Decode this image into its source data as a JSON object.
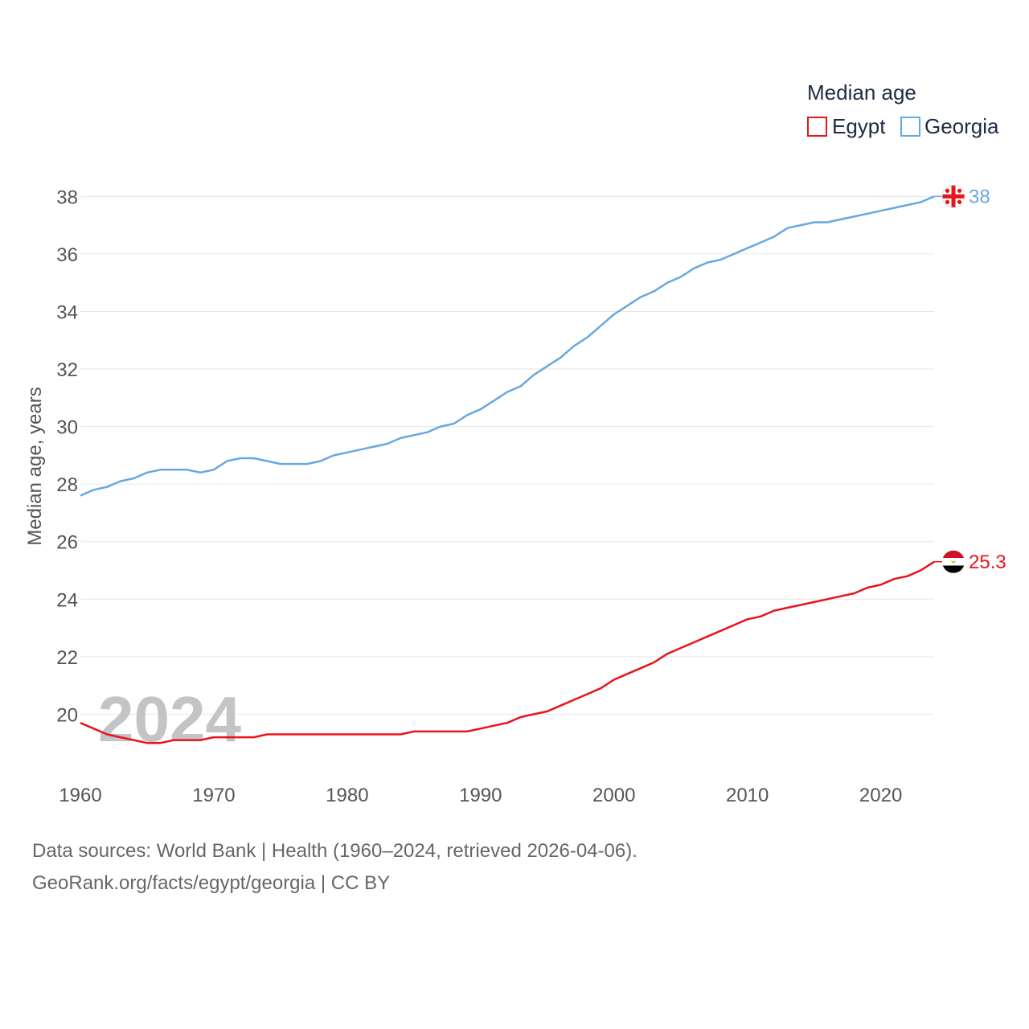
{
  "legend": {
    "title": "Median age",
    "items": [
      {
        "label": "Egypt",
        "color": "#e8141b"
      },
      {
        "label": "Georgia",
        "color": "#67a8e0"
      }
    ]
  },
  "watermark_year": "2024",
  "footer": {
    "line1": "Data sources: World Bank | Health (1960–2024, retrieved 2026-04-06).",
    "line2": "GeoRank.org/facts/egypt/georgia | CC BY"
  },
  "flags": {
    "georgia": "georgia-flag-icon",
    "egypt": "egypt-flag-icon"
  },
  "chart_data": {
    "type": "line",
    "title": "Median age",
    "xlabel": "",
    "ylabel": "Median age, years",
    "xlim": [
      1960,
      2024
    ],
    "ylim": [
      18.0,
      38.4
    ],
    "xticks": [
      1960,
      1970,
      1980,
      1990,
      2000,
      2010,
      2020
    ],
    "yticks": [
      20,
      22,
      24,
      26,
      28,
      30,
      32,
      34,
      36,
      38
    ],
    "grid": true,
    "legend_position": "top-right",
    "x": [
      1960,
      1961,
      1962,
      1963,
      1964,
      1965,
      1966,
      1967,
      1968,
      1969,
      1970,
      1971,
      1972,
      1973,
      1974,
      1975,
      1976,
      1977,
      1978,
      1979,
      1980,
      1981,
      1982,
      1983,
      1984,
      1985,
      1986,
      1987,
      1988,
      1989,
      1990,
      1991,
      1992,
      1993,
      1994,
      1995,
      1996,
      1997,
      1998,
      1999,
      2000,
      2001,
      2002,
      2003,
      2004,
      2005,
      2006,
      2007,
      2008,
      2009,
      2010,
      2011,
      2012,
      2013,
      2014,
      2015,
      2016,
      2017,
      2018,
      2019,
      2020,
      2021,
      2022,
      2023,
      2024
    ],
    "series": [
      {
        "name": "Georgia",
        "color": "#67a8e0",
        "end_label": "38",
        "values": [
          27.6,
          27.8,
          27.9,
          28.1,
          28.2,
          28.4,
          28.5,
          28.5,
          28.5,
          28.4,
          28.5,
          28.8,
          28.9,
          28.9,
          28.8,
          28.7,
          28.7,
          28.7,
          28.8,
          29.0,
          29.1,
          29.2,
          29.3,
          29.4,
          29.6,
          29.7,
          29.8,
          30.0,
          30.1,
          30.4,
          30.6,
          30.9,
          31.2,
          31.4,
          31.8,
          32.1,
          32.4,
          32.8,
          33.1,
          33.5,
          33.9,
          34.2,
          34.5,
          34.7,
          35.0,
          35.2,
          35.5,
          35.7,
          35.8,
          36.0,
          36.2,
          36.4,
          36.6,
          36.9,
          37.0,
          37.1,
          37.1,
          37.2,
          37.3,
          37.4,
          37.5,
          37.6,
          37.7,
          37.8,
          38.0
        ]
      },
      {
        "name": "Egypt",
        "color": "#e8141b",
        "end_label": "25.3",
        "values": [
          19.7,
          19.5,
          19.3,
          19.2,
          19.1,
          19.0,
          19.0,
          19.1,
          19.1,
          19.1,
          19.2,
          19.2,
          19.2,
          19.2,
          19.3,
          19.3,
          19.3,
          19.3,
          19.3,
          19.3,
          19.3,
          19.3,
          19.3,
          19.3,
          19.3,
          19.4,
          19.4,
          19.4,
          19.4,
          19.4,
          19.5,
          19.6,
          19.7,
          19.9,
          20.0,
          20.1,
          20.3,
          20.5,
          20.7,
          20.9,
          21.2,
          21.4,
          21.6,
          21.8,
          22.1,
          22.3,
          22.5,
          22.7,
          22.9,
          23.1,
          23.3,
          23.4,
          23.6,
          23.7,
          23.8,
          23.9,
          24.0,
          24.1,
          24.2,
          24.4,
          24.5,
          24.7,
          24.8,
          25.0,
          25.3
        ]
      }
    ]
  }
}
